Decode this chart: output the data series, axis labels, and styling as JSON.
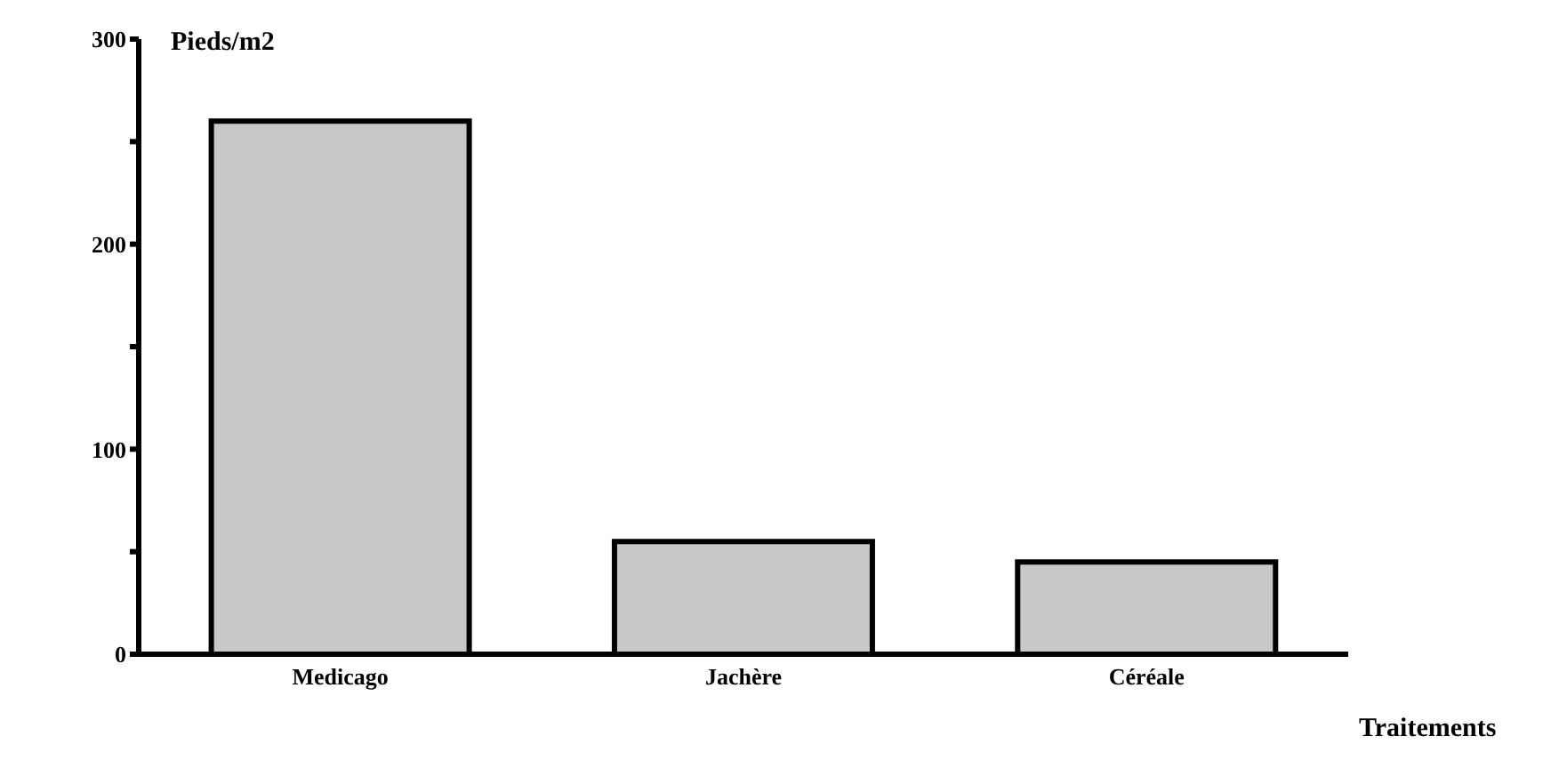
{
  "chart_data": {
    "type": "bar",
    "ylabel": "Pieds/m2",
    "xlabel": "Traitements",
    "categories": [
      "Medicago",
      "Jachère",
      "Céréale"
    ],
    "values": [
      260,
      55,
      45
    ],
    "color": "#c8c8c8",
    "ylim": [
      0,
      300
    ],
    "yticks": [
      0,
      {
        "value": 50,
        "label": null
      },
      100,
      {
        "value": 150,
        "label": null
      },
      200,
      {
        "value": 250,
        "label": null
      },
      300
    ],
    "grid": false,
    "legend": false
  }
}
